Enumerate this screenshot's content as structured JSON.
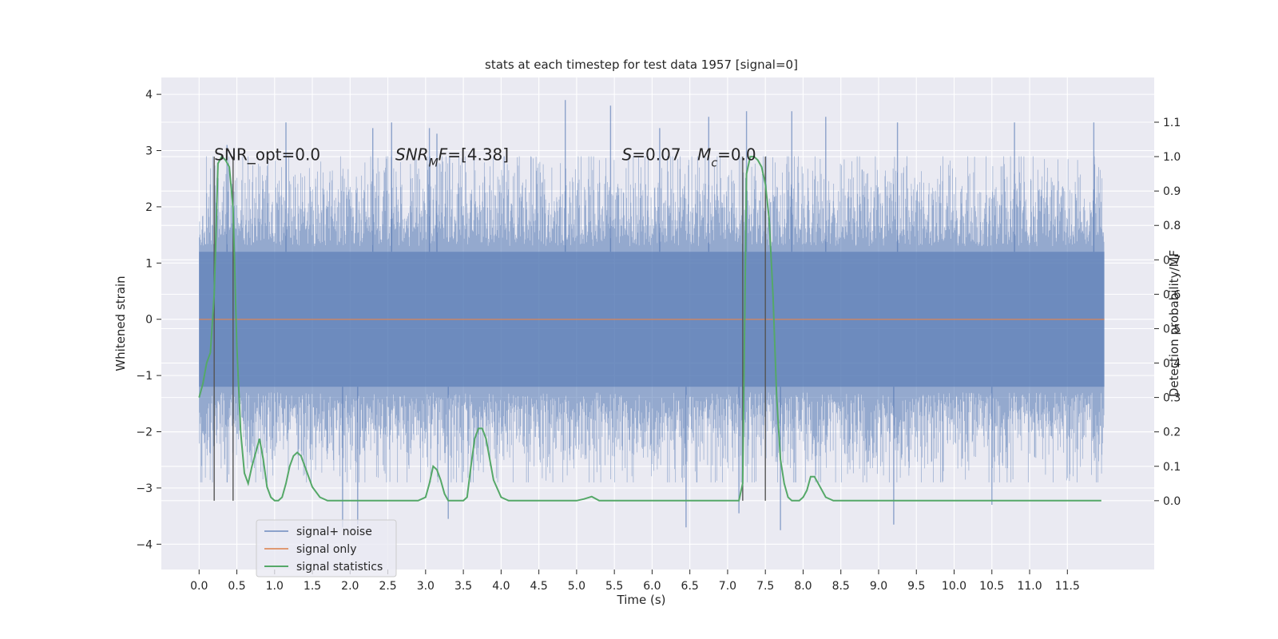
{
  "chart_data": {
    "type": "line",
    "title": "stats at each timestep for test data 1957 [signal=0]",
    "xlabel": "Time (s)",
    "ylabel": "Whitened strain",
    "y2label": "Detection probability/MF",
    "xlim": [
      -0.5,
      12.65
    ],
    "ylim": [
      -4.45,
      4.3
    ],
    "y2lim": [
      -0.2,
      1.23
    ],
    "xticks": [
      "0.0",
      "0.5",
      "1.0",
      "1.5",
      "2.0",
      "2.5",
      "3.0",
      "3.5",
      "4.0",
      "4.5",
      "5.0",
      "5.5",
      "6.0",
      "6.5",
      "7.0",
      "7.5",
      "8.0",
      "8.5",
      "9.0",
      "9.5",
      "10.0",
      "10.5",
      "11.0",
      "11.5"
    ],
    "yticks": [
      -4,
      -3,
      -2,
      -1,
      0,
      1,
      2,
      3,
      4
    ],
    "y2ticks": [
      "0.0",
      "0.1",
      "0.2",
      "0.3",
      "0.4",
      "0.5",
      "0.6",
      "0.7",
      "0.8",
      "0.9",
      "1.0",
      "1.1"
    ],
    "grid": true,
    "legend_position": "lower-left",
    "colors": {
      "background": "#eaeaf2",
      "grid": "#ffffff",
      "noise": "#4c72b0",
      "signal": "#dd8452",
      "stats": "#55a868",
      "vline": "#555555"
    },
    "series": [
      {
        "name": "signal+ noise",
        "time_range": [
          0.0,
          11.99
        ],
        "envelope_abs": 1.2,
        "peak_times": [
          0.37,
          1.15,
          2.3,
          2.55,
          3.05,
          3.15,
          4.85,
          5.45,
          6.1,
          6.75,
          7.25,
          7.85,
          8.3,
          9.25,
          10.8,
          11.85
        ],
        "peak_values": [
          3.1,
          3.5,
          3.4,
          3.5,
          3.4,
          3.3,
          3.9,
          3.8,
          3.4,
          3.6,
          3.7,
          3.7,
          3.6,
          3.5,
          3.5,
          3.5
        ],
        "trough_times": [
          1.9,
          2.1,
          3.3,
          6.45,
          7.15,
          7.7,
          9.2,
          10.5
        ],
        "trough_values": [
          -3.7,
          -3.65,
          -3.55,
          -3.7,
          -3.45,
          -3.75,
          -3.65,
          -3.3
        ]
      },
      {
        "name": "signal only",
        "x": [
          0.0,
          11.99
        ],
        "y": [
          0.0,
          0.0
        ]
      },
      {
        "name": "signal statistics",
        "axis": "right",
        "x": [
          0.0,
          0.05,
          0.1,
          0.15,
          0.2,
          0.25,
          0.3,
          0.35,
          0.4,
          0.45,
          0.5,
          0.55,
          0.6,
          0.65,
          0.7,
          0.75,
          0.8,
          0.85,
          0.9,
          0.95,
          1.0,
          1.05,
          1.1,
          1.15,
          1.2,
          1.25,
          1.3,
          1.35,
          1.4,
          1.5,
          1.6,
          1.7,
          1.8,
          2.0,
          2.2,
          2.4,
          2.6,
          2.8,
          2.9,
          3.0,
          3.05,
          3.1,
          3.15,
          3.2,
          3.25,
          3.3,
          3.4,
          3.5,
          3.55,
          3.6,
          3.65,
          3.7,
          3.75,
          3.8,
          3.9,
          4.0,
          4.1,
          4.3,
          4.6,
          5.0,
          5.1,
          5.2,
          5.3,
          5.5,
          6.0,
          6.5,
          7.0,
          7.15,
          7.2,
          7.25,
          7.3,
          7.35,
          7.4,
          7.45,
          7.5,
          7.55,
          7.6,
          7.65,
          7.7,
          7.75,
          7.8,
          7.85,
          7.9,
          7.95,
          8.0,
          8.05,
          8.1,
          8.15,
          8.2,
          8.3,
          8.4,
          8.6,
          9.0,
          10.0,
          11.0,
          11.5,
          11.8,
          11.95
        ],
        "y": [
          0.3,
          0.34,
          0.4,
          0.43,
          0.6,
          0.98,
          1.0,
          0.99,
          0.97,
          0.85,
          0.45,
          0.2,
          0.08,
          0.05,
          0.1,
          0.14,
          0.18,
          0.12,
          0.04,
          0.01,
          0.0,
          0.0,
          0.01,
          0.05,
          0.1,
          0.13,
          0.14,
          0.13,
          0.1,
          0.04,
          0.01,
          0.0,
          0.0,
          0.0,
          0.0,
          0.0,
          0.0,
          0.0,
          0.0,
          0.01,
          0.05,
          0.1,
          0.09,
          0.06,
          0.02,
          0.0,
          0.0,
          0.0,
          0.01,
          0.1,
          0.18,
          0.21,
          0.21,
          0.18,
          0.06,
          0.01,
          0.0,
          0.0,
          0.0,
          0.0,
          0.005,
          0.012,
          0.0,
          0.0,
          0.0,
          0.0,
          0.0,
          0.0,
          0.05,
          0.95,
          1.0,
          1.0,
          0.99,
          0.97,
          0.92,
          0.82,
          0.6,
          0.3,
          0.12,
          0.05,
          0.01,
          0.0,
          0.0,
          0.0,
          0.01,
          0.03,
          0.07,
          0.07,
          0.05,
          0.01,
          0.0,
          0.0,
          0.0,
          0.0,
          0.0,
          0.0,
          0.0,
          0.0
        ]
      }
    ],
    "vertical_lines": [
      0.2,
      0.45,
      7.2,
      7.5
    ],
    "annotations": [
      {
        "label": "SNR_opt=0.0",
        "x": 0.2,
        "y2": 0.99
      },
      {
        "label": "SNR_MF=[4.38]",
        "x": 2.6,
        "y2": 0.99
      },
      {
        "label": "S=0.07",
        "x": 5.6,
        "y2": 0.99
      },
      {
        "label": "M_c=0.0",
        "x": 6.6,
        "y2": 0.99
      }
    ]
  }
}
